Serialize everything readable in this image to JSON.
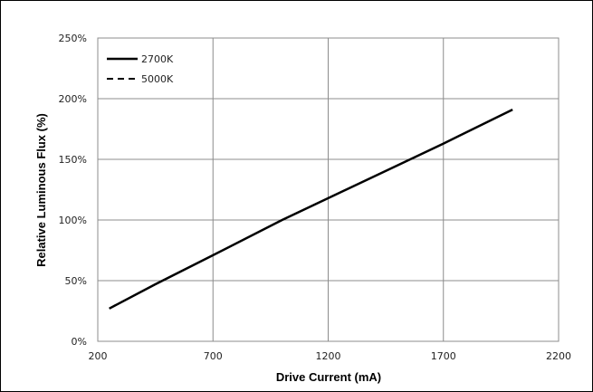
{
  "chart_data": {
    "type": "line",
    "title": "",
    "xlabel": "Drive Current (mA)",
    "ylabel": "Relative Luminous Flux (%)",
    "xlim": [
      200,
      2200
    ],
    "ylim": [
      0,
      250
    ],
    "x_ticks": [
      200,
      700,
      1200,
      1700,
      2200
    ],
    "x_tick_labels": [
      "200",
      "700",
      "1200",
      "1700",
      "2200"
    ],
    "y_ticks": [
      0,
      50,
      100,
      150,
      200,
      250
    ],
    "y_tick_labels": [
      "0%",
      "50%",
      "100%",
      "150%",
      "200%",
      "250%"
    ],
    "grid": true,
    "legend_position": "top-left",
    "series": [
      {
        "name": "2700K",
        "style": "solid",
        "color": "#000000",
        "x": [
          250,
          450,
          700,
          1000,
          1200,
          1500,
          1700,
          2000
        ],
        "y": [
          27,
          47,
          71,
          100,
          118,
          145,
          163,
          191
        ]
      },
      {
        "name": "5000K",
        "style": "dashed",
        "color": "#000000",
        "x": [
          250,
          450,
          700,
          1000,
          1200,
          1500,
          1700,
          2000
        ],
        "y": [
          27,
          47,
          71,
          100,
          118,
          145,
          163,
          191
        ]
      }
    ]
  }
}
